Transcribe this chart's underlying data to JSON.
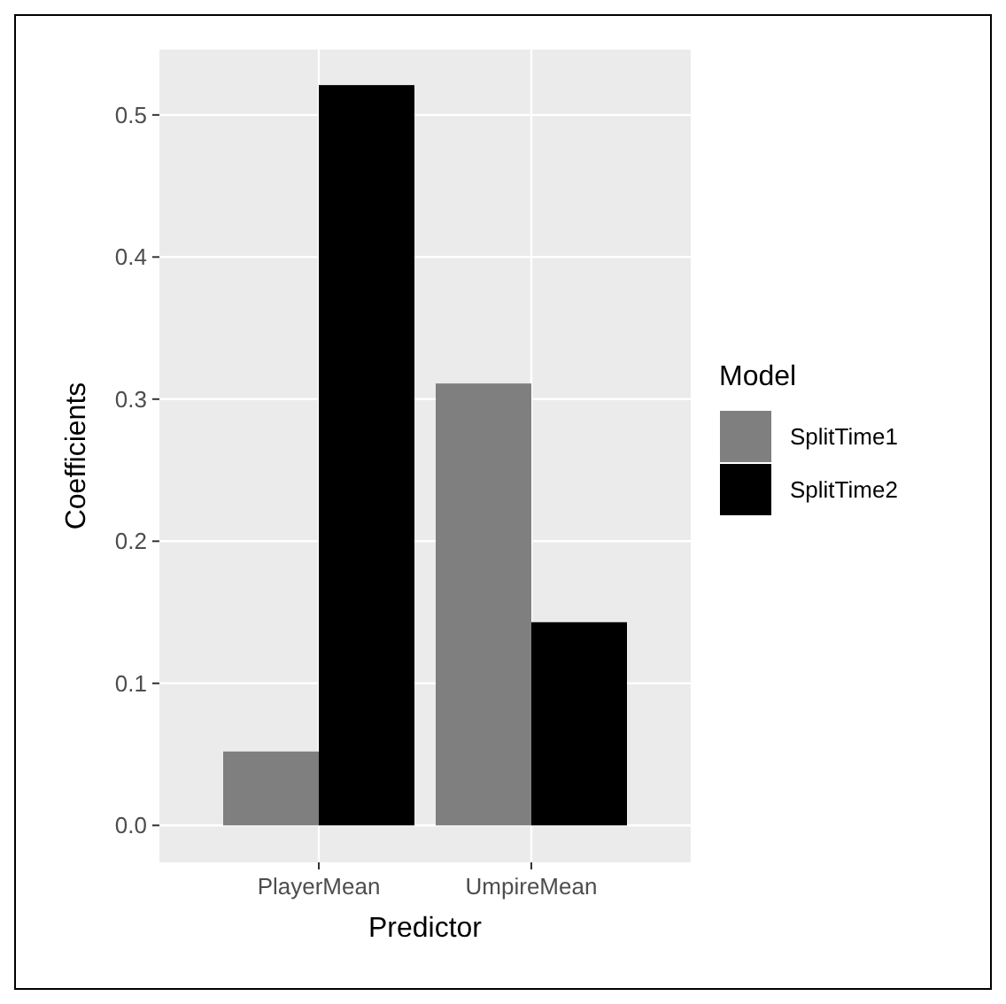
{
  "chart_data": {
    "type": "bar",
    "xlabel": "Predictor",
    "ylabel": "Coefficients",
    "legend_title": "Model",
    "categories": [
      "PlayerMean",
      "UmpireMean"
    ],
    "series": [
      {
        "name": "SplitTime1",
        "color": "#7f7f7f",
        "values": [
          0.052,
          0.311
        ]
      },
      {
        "name": "SplitTime2",
        "color": "#000000",
        "values": [
          0.521,
          0.143
        ]
      }
    ],
    "ylim": [
      -0.026,
      0.546
    ],
    "yticks": [
      {
        "value": 0,
        "label": "0.0"
      },
      {
        "value": 0.1,
        "label": "0.1"
      },
      {
        "value": 0.2,
        "label": "0.2"
      },
      {
        "value": 0.3,
        "label": "0.3"
      },
      {
        "value": 0.4,
        "label": "0.4"
      },
      {
        "value": 0.5,
        "label": "0.5"
      }
    ],
    "grid": true,
    "legend": "right"
  }
}
